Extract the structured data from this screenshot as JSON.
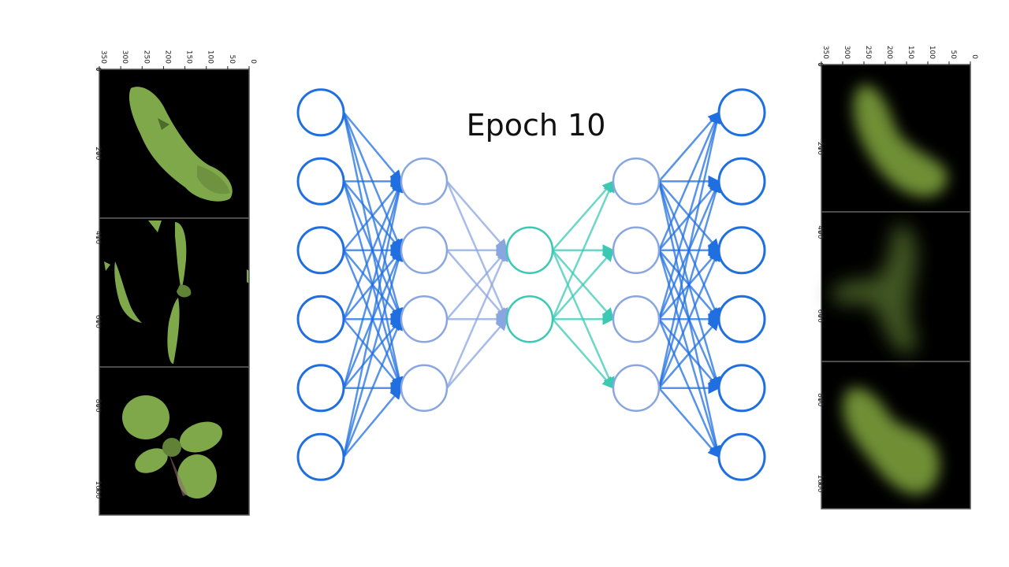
{
  "title": "Epoch 10",
  "colors": {
    "input_layer": "#1f6fe0",
    "hidden_layer": "#8aa6e0",
    "bottleneck": "#3cc9b4",
    "panel_bg": "#000000",
    "leaf": "#7fa84a",
    "recon_leaf": "#6f8f34",
    "axis": "#222222"
  },
  "network": {
    "layers": [
      {
        "name": "input",
        "nodes": 6
      },
      {
        "name": "encoder-hidden",
        "nodes": 4
      },
      {
        "name": "bottleneck",
        "nodes": 2
      },
      {
        "name": "decoder-hidden",
        "nodes": 4
      },
      {
        "name": "output",
        "nodes": 6
      }
    ]
  },
  "left_panel": {
    "x_ticks": [
      "350",
      "300",
      "250",
      "200",
      "150",
      "100",
      "50",
      "0"
    ],
    "y_ticks": [
      "0",
      "200",
      "400",
      "600",
      "800",
      "1000"
    ],
    "images": [
      {
        "name": "input-leaf-1"
      },
      {
        "name": "input-leaf-2"
      },
      {
        "name": "input-leaf-3"
      }
    ]
  },
  "right_panel": {
    "x_ticks": [
      "350",
      "300",
      "250",
      "200",
      "150",
      "100",
      "50",
      "0"
    ],
    "y_ticks": [
      "0",
      "200",
      "400",
      "600",
      "800",
      "1000"
    ],
    "images": [
      {
        "name": "reconstructed-leaf-1"
      },
      {
        "name": "reconstructed-leaf-2"
      },
      {
        "name": "reconstructed-leaf-3"
      }
    ]
  }
}
